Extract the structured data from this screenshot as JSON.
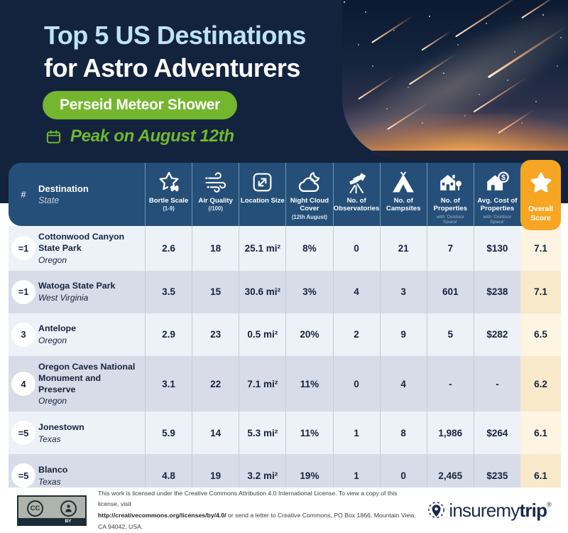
{
  "hero": {
    "title_line1": "Top 5 US Destinations",
    "title_line2": "for Astro Adventurers",
    "event_badge": "Perseid Meteor Shower",
    "peak_label": "Peak on August 12th",
    "calendar_icon": "calendar-icon",
    "photo": "perseid-meteor-shower-night-sky-photo"
  },
  "colors": {
    "background_navy": "#13233E",
    "header_navy": "#254F79",
    "accent_green": "#74B62E",
    "accent_orange": "#F6A623",
    "title_blue": "#BEE3F5",
    "row_light": "#EDF1F8",
    "row_dark": "#D7DCE8",
    "score_cell_cream": "#FDF4E2",
    "text_navy": "#16243D"
  },
  "table": {
    "rank_header": "#",
    "destination_header": "Destination",
    "destination_subheader": "State",
    "metric_columns": [
      {
        "icon": "star-binoculars-icon",
        "label": "Bortle Scale",
        "sub": "(1-9)",
        "note": ""
      },
      {
        "icon": "wind-icon",
        "label": "Air Quality",
        "sub": "(/100)",
        "note": ""
      },
      {
        "icon": "expand-icon",
        "label": "Location Size",
        "sub": "",
        "note": ""
      },
      {
        "icon": "night-cloud-icon",
        "label": "Night Cloud Cover",
        "sub": "(12th August)",
        "note": ""
      },
      {
        "icon": "telescope-icon",
        "label": "No. of Observatories",
        "sub": "",
        "note": ""
      },
      {
        "icon": "tent-icon",
        "label": "No. of Campsites",
        "sub": "",
        "note": ""
      },
      {
        "icon": "house-icon",
        "label": "No. of Properties",
        "sub": "",
        "note": "with 'Outdoor Space'"
      },
      {
        "icon": "house-dollar-icon",
        "label": "Avg. Cost of Properties",
        "sub": "",
        "note": "with 'Outdoor Space'"
      }
    ],
    "score_column": {
      "icon": "star-icon",
      "label": "Overall Score"
    },
    "rows": [
      {
        "rank": "=1",
        "name": "Cottonwood Canyon State Park",
        "state": "Oregon",
        "values": [
          "2.6",
          "18",
          "25.1 mi²",
          "8%",
          "0",
          "21",
          "7",
          "$130"
        ],
        "score": "7.1"
      },
      {
        "rank": "=1",
        "name": "Watoga State Park",
        "state": "West Virginia",
        "values": [
          "3.5",
          "15",
          "30.6 mi²",
          "3%",
          "4",
          "3",
          "601",
          "$238"
        ],
        "score": "7.1"
      },
      {
        "rank": "3",
        "name": "Antelope",
        "state": "Oregon",
        "values": [
          "2.9",
          "23",
          "0.5 mi²",
          "20%",
          "2",
          "9",
          "5",
          "$282"
        ],
        "score": "6.5"
      },
      {
        "rank": "4",
        "name": "Oregon Caves National Monument and Preserve",
        "state": "Oregon",
        "values": [
          "3.1",
          "22",
          "7.1 mi²",
          "11%",
          "0",
          "4",
          "-",
          "-"
        ],
        "score": "6.2"
      },
      {
        "rank": "=5",
        "name": "Jonestown",
        "state": "Texas",
        "values": [
          "5.9",
          "14",
          "5.3 mi²",
          "11%",
          "1",
          "8",
          "1,986",
          "$264"
        ],
        "score": "6.1"
      },
      {
        "rank": "=5",
        "name": "Blanco",
        "state": "Texas",
        "values": [
          "4.8",
          "19",
          "3.2 mi²",
          "19%",
          "1",
          "0",
          "2,465",
          "$235"
        ],
        "score": "6.1"
      }
    ]
  },
  "chart_data": {
    "type": "table",
    "title": "Top 5 US Destinations for Astro Adventurers — Perseid Meteor Shower (Peak on August 12th)",
    "columns": [
      "#",
      "Destination (State)",
      "Bortle Scale (1-9)",
      "Air Quality (/100)",
      "Location Size",
      "Night Cloud Cover (12th August)",
      "No. of Observatories",
      "No. of Campsites",
      "No. of Properties with 'Outdoor Space'",
      "Avg. Cost of Properties with 'Outdoor Space'",
      "Overall Score"
    ],
    "rows": [
      [
        "=1",
        "Cottonwood Canyon State Park (Oregon)",
        2.6,
        18,
        "25.1 mi²",
        "8%",
        0,
        21,
        7,
        "$130",
        7.1
      ],
      [
        "=1",
        "Watoga State Park (West Virginia)",
        3.5,
        15,
        "30.6 mi²",
        "3%",
        4,
        3,
        601,
        "$238",
        7.1
      ],
      [
        "3",
        "Antelope (Oregon)",
        2.9,
        23,
        "0.5 mi²",
        "20%",
        2,
        9,
        5,
        "$282",
        6.5
      ],
      [
        "4",
        "Oregon Caves National Monument and Preserve (Oregon)",
        3.1,
        22,
        "7.1 mi²",
        "11%",
        0,
        4,
        "-",
        "-",
        6.2
      ],
      [
        "=5",
        "Jonestown (Texas)",
        5.9,
        14,
        "5.3 mi²",
        "11%",
        1,
        8,
        "1,986",
        "$264",
        6.1
      ],
      [
        "=5",
        "Blanco (Texas)",
        4.8,
        19,
        "3.2 mi²",
        "19%",
        1,
        0,
        "2,465",
        "$235",
        6.1
      ]
    ]
  },
  "footer": {
    "cc_icon": "creative-commons-icon",
    "by_icon": "attribution-person-icon",
    "cc_label": "BY",
    "license_line1": "This work is licensed under the Creative Commons Attribution 4.0 International License. To view a copy of this license, visit",
    "license_link": "http://creativecommons.org/licenses/by/4.0/",
    "license_line2": " or send a letter to Creative Commons, PO Box 1866, Mountain View, CA 94042, USA.",
    "logo_prefix": "insuremy",
    "logo_bold": "trip",
    "logo_reg": "®"
  }
}
